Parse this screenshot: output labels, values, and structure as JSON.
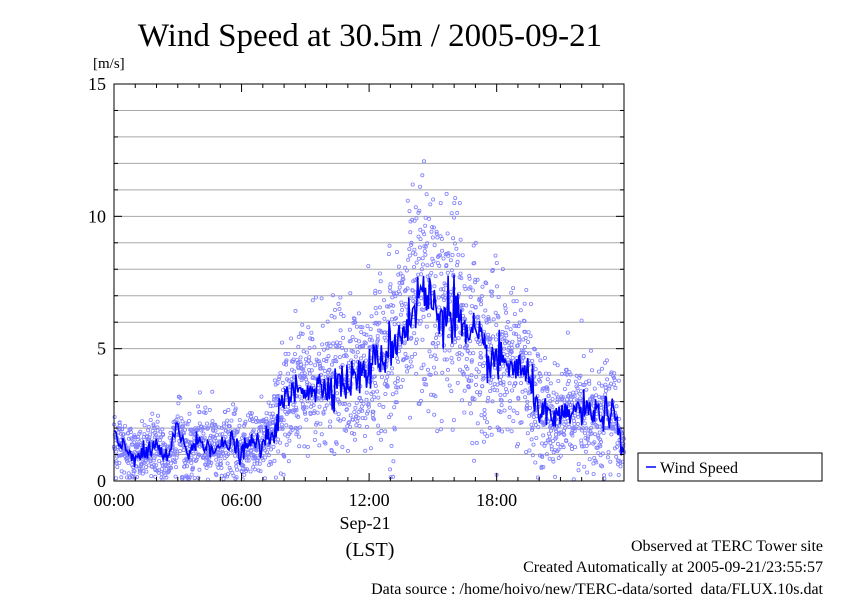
{
  "chart_data": {
    "type": "line",
    "title": "Wind Speed at 30.5m / 2005-09-21",
    "ylabel": "[m/s]",
    "xlabel": "(LST)",
    "date_label": "Sep-21",
    "ylim": [
      0,
      15
    ],
    "xlim_hours": [
      0,
      23.99
    ],
    "x_ticks": [
      "00:00",
      "06:00",
      "12:00",
      "18:00"
    ],
    "y_ticks": [
      "0",
      "5",
      "10",
      "15"
    ],
    "grid": true,
    "legend_position": "right",
    "series": [
      {
        "name": "Wind Speed",
        "color": "#0000ff",
        "scatter_color": "#8080ff",
        "x_hours": [
          0,
          0.5,
          1,
          1.5,
          2,
          2.5,
          3,
          3.5,
          4,
          4.5,
          5,
          5.5,
          6,
          6.5,
          7,
          7.5,
          8,
          8.5,
          9,
          9.5,
          10,
          10.5,
          11,
          11.5,
          12,
          12.5,
          13,
          13.5,
          14,
          14.5,
          15,
          15.5,
          16,
          16.5,
          17,
          17.5,
          18,
          18.5,
          19,
          19.5,
          20,
          20.5,
          21,
          21.5,
          22,
          22.5,
          23,
          23.5,
          23.9
        ],
        "values": [
          1.5,
          1.3,
          0.9,
          1.0,
          1.4,
          0.7,
          2.1,
          1.0,
          1.5,
          1.4,
          1.2,
          1.5,
          1.0,
          1.5,
          1.3,
          1.9,
          3.0,
          3.4,
          3.6,
          3.5,
          3.6,
          3.8,
          3.7,
          4.0,
          4.2,
          4.6,
          5.1,
          5.6,
          6.3,
          7.2,
          6.6,
          6.3,
          6.8,
          5.4,
          5.3,
          4.8,
          4.5,
          4.4,
          4.3,
          3.8,
          2.8,
          2.3,
          2.3,
          2.6,
          2.7,
          2.5,
          2.6,
          2.5,
          1.2
        ]
      }
    ]
  },
  "footer": {
    "line1": "Observed at TERC Tower site",
    "line2": "Created Automatically at 2005-09-21/23:55:57",
    "line3": "Data source : /home/hoivo/new/TERC-data/sorted_data/FLUX.10s.dat"
  }
}
